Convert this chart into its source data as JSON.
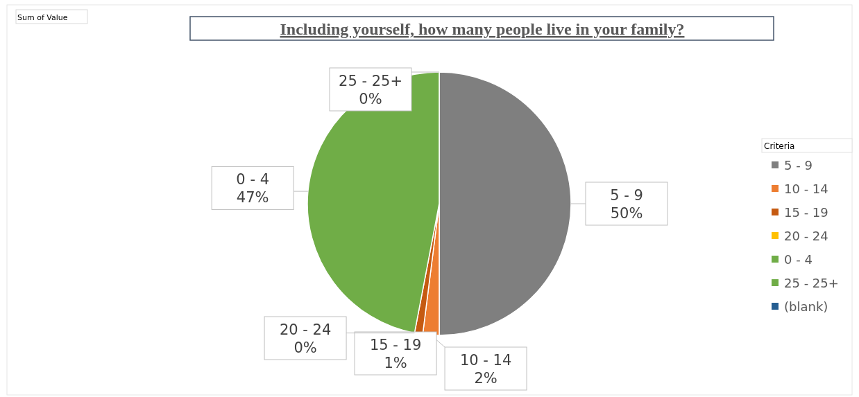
{
  "chart_data": {
    "type": "pie",
    "title": "Including yourself, how many people live in your family?",
    "categories": [
      "5 - 9",
      "10 - 14",
      "15 - 19",
      "20 - 24",
      "0 - 4",
      "25 - 25+",
      "(blank)"
    ],
    "values": [
      50,
      2,
      1,
      0,
      47,
      0,
      null
    ],
    "colors": [
      "#7f7f7f",
      "#ed7d31",
      "#c55a11",
      "#ffc000",
      "#70ad47",
      "#70ad47",
      "#255e91"
    ],
    "value_labels": [
      "50%",
      "2%",
      "1%",
      "0%",
      "47%",
      "0%",
      null
    ],
    "data_labels": true,
    "legend": "right",
    "legend_title": "Criteria",
    "annotations": [
      "Sum of Value"
    ]
  }
}
